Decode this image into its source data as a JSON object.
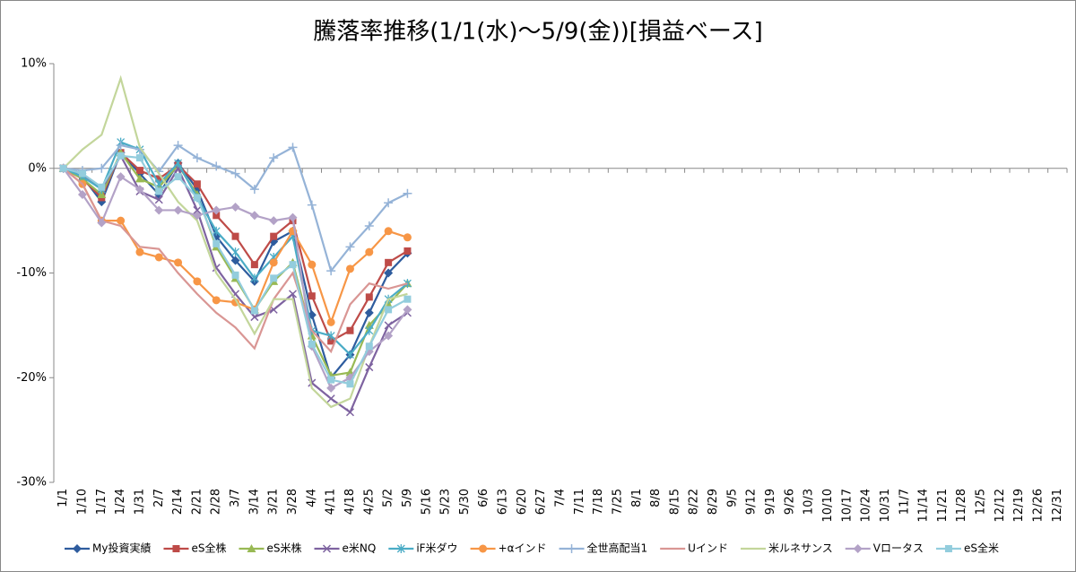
{
  "chart_data": {
    "type": "line",
    "title": "騰落率推移(1/1(水)～5/9(金))[損益ベース]",
    "categories": [
      "1/1",
      "1/10",
      "1/17",
      "1/24",
      "1/31",
      "2/7",
      "2/14",
      "2/21",
      "2/28",
      "3/7",
      "3/14",
      "3/21",
      "3/28",
      "4/4",
      "4/11",
      "4/18",
      "4/25",
      "5/2",
      "5/9",
      "5/16",
      "5/23",
      "5/30",
      "6/6",
      "6/13",
      "6/20",
      "6/27",
      "7/4",
      "7/11",
      "7/18",
      "7/25",
      "8/1",
      "8/8",
      "8/15",
      "8/22",
      "8/29",
      "9/5",
      "9/12",
      "9/19",
      "9/26",
      "10/3",
      "10/10",
      "10/17",
      "10/24",
      "10/31",
      "11/7",
      "11/14",
      "11/21",
      "11/28",
      "12/5",
      "12/12",
      "12/19",
      "12/26",
      "12/31"
    ],
    "ylim": [
      -30,
      10
    ],
    "yticks": [
      {
        "value": -30,
        "label": "-30%"
      },
      {
        "value": -20,
        "label": "-20%"
      },
      {
        "value": -10,
        "label": "-10%"
      },
      {
        "value": 0,
        "label": "0%"
      },
      {
        "value": 10,
        "label": "10%"
      }
    ],
    "grid": false,
    "legend": "bottom",
    "series": [
      {
        "name": "My投資実績",
        "color": "#2e5c9e",
        "marker": "diamond",
        "values": [
          0,
          -0.8,
          -3.2,
          1.5,
          -0.5,
          -2.5,
          0.5,
          -2,
          -6.5,
          -8.8,
          -10.8,
          -7,
          -6,
          -14,
          -20,
          -17.8,
          -13.8,
          -10,
          -8.1,
          null,
          null,
          null,
          null,
          null,
          null,
          null,
          null,
          null,
          null,
          null,
          null,
          null,
          null,
          null,
          null,
          null,
          null,
          null,
          null,
          null,
          null,
          null,
          null,
          null,
          null,
          null,
          null,
          null,
          null,
          null,
          null,
          null,
          null
        ]
      },
      {
        "name": "eS全株",
        "color": "#be4b48",
        "marker": "square",
        "values": [
          0,
          -1,
          -2.8,
          1.5,
          -0.2,
          -1,
          0.3,
          -1.5,
          -4.5,
          -6.5,
          -9.2,
          -6.5,
          -5,
          -12.2,
          -16.5,
          -15.5,
          -12.3,
          -9,
          -7.9,
          null,
          null,
          null,
          null,
          null,
          null,
          null,
          null,
          null,
          null,
          null,
          null,
          null,
          null,
          null,
          null,
          null,
          null,
          null,
          null,
          null,
          null,
          null,
          null,
          null,
          null,
          null,
          null,
          null,
          null,
          null,
          null,
          null,
          null
        ]
      },
      {
        "name": "eS米株",
        "color": "#98b954",
        "marker": "triangle",
        "values": [
          0,
          -1,
          -2.5,
          1.5,
          -1,
          -1.8,
          0.3,
          -2.5,
          -7.5,
          -10.5,
          -13.5,
          -10.8,
          -9,
          -16,
          -19.8,
          -19.5,
          -15,
          -13,
          -11,
          null,
          null,
          null,
          null,
          null,
          null,
          null,
          null,
          null,
          null,
          null,
          null,
          null,
          null,
          null,
          null,
          null,
          null,
          null,
          null,
          null,
          null,
          null,
          null,
          null,
          null,
          null,
          null,
          null,
          null,
          null,
          null,
          null,
          null
        ]
      },
      {
        "name": "e米NQ",
        "color": "#7e63a0",
        "marker": "x",
        "values": [
          0,
          -0.5,
          -2,
          1.2,
          -2.2,
          -3,
          0,
          -4,
          -9.5,
          -12,
          -14.2,
          -13.5,
          -12,
          -20.5,
          -22,
          -23.3,
          -19,
          -15,
          -13.8,
          null,
          null,
          null,
          null,
          null,
          null,
          null,
          null,
          null,
          null,
          null,
          null,
          null,
          null,
          null,
          null,
          null,
          null,
          null,
          null,
          null,
          null,
          null,
          null,
          null,
          null,
          null,
          null,
          null,
          null,
          null,
          null,
          null,
          null
        ]
      },
      {
        "name": "iF米ダウ",
        "color": "#4bacc6",
        "marker": "star",
        "values": [
          0,
          -0.8,
          -2,
          2.5,
          1.8,
          -1.5,
          0.5,
          -2.8,
          -6,
          -8,
          -10.5,
          -8.5,
          -6.5,
          -15.5,
          -16,
          -17.8,
          -15.5,
          -12.5,
          -11,
          null,
          null,
          null,
          null,
          null,
          null,
          null,
          null,
          null,
          null,
          null,
          null,
          null,
          null,
          null,
          null,
          null,
          null,
          null,
          null,
          null,
          null,
          null,
          null,
          null,
          null,
          null,
          null,
          null,
          null,
          null,
          null,
          null,
          null
        ]
      },
      {
        "name": "+αインド",
        "color": "#f79646",
        "marker": "circle",
        "values": [
          0,
          -1.5,
          -5,
          -5,
          -8,
          -8.5,
          -9,
          -10.8,
          -12.6,
          -12.8,
          -13.5,
          -9,
          -6,
          -9.2,
          -14.7,
          -9.6,
          -8,
          -6,
          -6.6,
          null,
          null,
          null,
          null,
          null,
          null,
          null,
          null,
          null,
          null,
          null,
          null,
          null,
          null,
          null,
          null,
          null,
          null,
          null,
          null,
          null,
          null,
          null,
          null,
          null,
          null,
          null,
          null,
          null,
          null,
          null,
          null,
          null,
          null
        ]
      },
      {
        "name": "全世高配当1",
        "color": "#95b3d7",
        "marker": "plus",
        "values": [
          0,
          -0.2,
          0,
          2.2,
          1.8,
          -0.3,
          2.2,
          1,
          0.2,
          -0.5,
          -2,
          1,
          2,
          -3.5,
          -9.8,
          -7.5,
          -5.5,
          -3.3,
          -2.4,
          null,
          null,
          null,
          null,
          null,
          null,
          null,
          null,
          null,
          null,
          null,
          null,
          null,
          null,
          null,
          null,
          null,
          null,
          null,
          null,
          null,
          null,
          null,
          null,
          null,
          null,
          null,
          null,
          null,
          null,
          null,
          null,
          null,
          null
        ]
      },
      {
        "name": "Uインド",
        "color": "#d99694",
        "marker": "none",
        "values": [
          0,
          -1.5,
          -5,
          -5.5,
          -7.5,
          -7.7,
          -10,
          -12,
          -13.8,
          -15.2,
          -17.2,
          -12.5,
          -10,
          -15.5,
          -17.5,
          -13,
          -11,
          -11.5,
          -11,
          null,
          null,
          null,
          null,
          null,
          null,
          null,
          null,
          null,
          null,
          null,
          null,
          null,
          null,
          null,
          null,
          null,
          null,
          null,
          null,
          null,
          null,
          null,
          null,
          null,
          null,
          null,
          null,
          null,
          null,
          null,
          null,
          null,
          null
        ]
      },
      {
        "name": "米ルネサンス",
        "color": "#c3d69b",
        "marker": "none",
        "values": [
          0,
          1.8,
          3.2,
          8.6,
          2,
          -0.5,
          -3.2,
          -5,
          -10,
          -12.5,
          -15.8,
          -12.5,
          -12.5,
          -21,
          -22.8,
          -22,
          -17,
          -12.5,
          -12,
          null,
          null,
          null,
          null,
          null,
          null,
          null,
          null,
          null,
          null,
          null,
          null,
          null,
          null,
          null,
          null,
          null,
          null,
          null,
          null,
          null,
          null,
          null,
          null,
          null,
          null,
          null,
          null,
          null,
          null,
          null,
          null,
          null,
          null
        ]
      },
      {
        "name": "Vロータス",
        "color": "#b3a2c7",
        "marker": "diamond",
        "values": [
          0,
          -2.5,
          -5.2,
          -0.8,
          -2,
          -4,
          -4,
          -4.5,
          -4,
          -3.7,
          -4.5,
          -5,
          -4.7,
          -17,
          -21,
          -20,
          -17.5,
          -16,
          -13.5,
          null,
          null,
          null,
          null,
          null,
          null,
          null,
          null,
          null,
          null,
          null,
          null,
          null,
          null,
          null,
          null,
          null,
          null,
          null,
          null,
          null,
          null,
          null,
          null,
          null,
          null,
          null,
          null,
          null,
          null,
          null,
          null,
          null,
          null
        ]
      },
      {
        "name": "eS全米",
        "color": "#93cddd",
        "marker": "square",
        "values": [
          0,
          -0.5,
          -1.8,
          1.2,
          1,
          -2.2,
          -0.8,
          -2.8,
          -7.2,
          -10.2,
          -13.6,
          -10.5,
          -9.2,
          -16.8,
          -20.2,
          -20.6,
          -17,
          -13.5,
          -12.5,
          null,
          null,
          null,
          null,
          null,
          null,
          null,
          null,
          null,
          null,
          null,
          null,
          null,
          null,
          null,
          null,
          null,
          null,
          null,
          null,
          null,
          null,
          null,
          null,
          null,
          null,
          null,
          null,
          null,
          null,
          null,
          null,
          null,
          null
        ]
      }
    ]
  }
}
